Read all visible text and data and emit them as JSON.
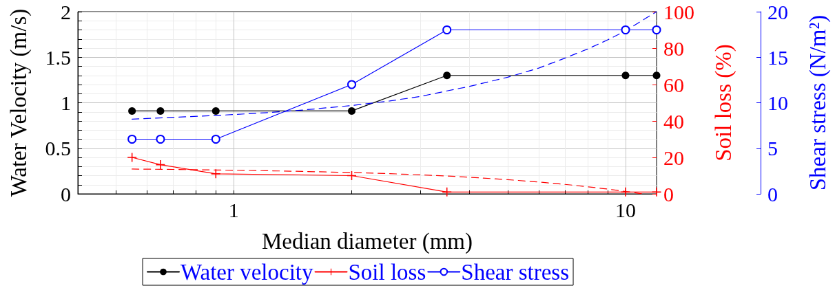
{
  "chart_data": {
    "type": "line",
    "xlabel": "Median diameter (mm)",
    "ylabel": "Water Velocity (m/s)",
    "y2label": "Soil loss (%)",
    "y3label": "Shear stress (N/m²)",
    "log": "x",
    "xlim": [
      0.4,
      12
    ],
    "xticks": [
      {
        "value": 0.5,
        "label": null
      },
      {
        "value": 0.6,
        "label": null
      },
      {
        "value": 0.7,
        "label": null
      },
      {
        "value": 0.8,
        "label": null
      },
      {
        "value": 0.9,
        "label": null
      },
      1,
      {
        "value": 2,
        "label": null
      },
      {
        "value": 3,
        "label": null
      },
      {
        "value": 4,
        "label": null
      },
      {
        "value": 5,
        "label": null
      },
      {
        "value": 6,
        "label": null
      },
      {
        "value": 7,
        "label": null
      },
      {
        "value": 8,
        "label": null
      },
      {
        "value": 9,
        "label": null
      },
      10
    ],
    "ylim": [
      0,
      2
    ],
    "yticks": [
      0,
      {
        "value": 0.1,
        "label": null
      },
      {
        "value": 0.2,
        "label": null
      },
      {
        "value": 0.3,
        "label": null
      },
      {
        "value": 0.4,
        "label": null
      },
      0.5,
      {
        "value": 0.6,
        "label": null
      },
      {
        "value": 0.7,
        "label": null
      },
      {
        "value": 0.8,
        "label": null
      },
      {
        "value": 0.9,
        "label": null
      },
      1,
      {
        "value": 1.1,
        "label": null
      },
      {
        "value": 1.2,
        "label": null
      },
      {
        "value": 1.3,
        "label": null
      },
      {
        "value": 1.4,
        "label": null
      },
      1.5,
      {
        "value": 1.6,
        "label": null
      },
      {
        "value": 1.7,
        "label": null
      },
      {
        "value": 1.8,
        "label": null
      },
      {
        "value": 1.9,
        "label": null
      },
      2
    ],
    "y2lim": [
      0,
      100
    ],
    "y2ticks": [
      0,
      20,
      40,
      60,
      80,
      100
    ],
    "y3lim": [
      0,
      20
    ],
    "y3ticks": [
      0,
      5,
      10,
      15,
      20
    ],
    "grid": true,
    "legend": "bottom",
    "line_style": "solid",
    "x": [
      0.55,
      0.65,
      0.9,
      2,
      3.5,
      10,
      12
    ],
    "series": [
      {
        "name": "Water velocity",
        "color": "#000000",
        "marker": "circle",
        "values": [
          0.91,
          0.91,
          0.91,
          0.91,
          1.3,
          1.3,
          1.3
        ]
      },
      {
        "name": "Soil loss",
        "color": "#ff0000",
        "marker": "cross",
        "axis": "y2",
        "values": [
          20,
          16,
          11,
          10,
          1,
          1,
          1
        ]
      },
      {
        "name": "Shear stress",
        "color": "#0000ff",
        "marker": "circle",
        "axis": "y3",
        "values": [
          6,
          6,
          6,
          12,
          18,
          18,
          18
        ]
      },
      {
        "type": "line",
        "color": "#ff0000",
        "marker": "none",
        "line_style": "dashed",
        "axis": "y2",
        "x": [
          0.55,
          0.7,
          0.9,
          1.2,
          1.5,
          2,
          2.5,
          3,
          3.5,
          4,
          5,
          6,
          7,
          8,
          9,
          10,
          11
        ],
        "values": [
          13.6,
          13.4,
          13.1,
          12.7,
          12.3,
          11.7,
          11.1,
          10.4,
          9.8,
          9.1,
          7.8,
          6.5,
          5.2,
          3.9,
          2.6,
          1.3,
          0
        ]
      },
      {
        "type": "line",
        "color": "#0000ff",
        "marker": "none",
        "line_style": "dashed",
        "axis": "y3",
        "x": [
          0.55,
          0.7,
          0.9,
          1.2,
          1.5,
          2,
          2.5,
          3,
          3.5,
          4,
          5,
          6,
          7,
          8,
          9,
          10,
          11,
          12
        ],
        "values": [
          8.2,
          8.4,
          8.6,
          8.9,
          9.2,
          9.7,
          10.2,
          10.7,
          11.3,
          11.8,
          12.8,
          13.8,
          14.9,
          15.9,
          16.9,
          17.9,
          19.0,
          20.0
        ]
      }
    ]
  }
}
